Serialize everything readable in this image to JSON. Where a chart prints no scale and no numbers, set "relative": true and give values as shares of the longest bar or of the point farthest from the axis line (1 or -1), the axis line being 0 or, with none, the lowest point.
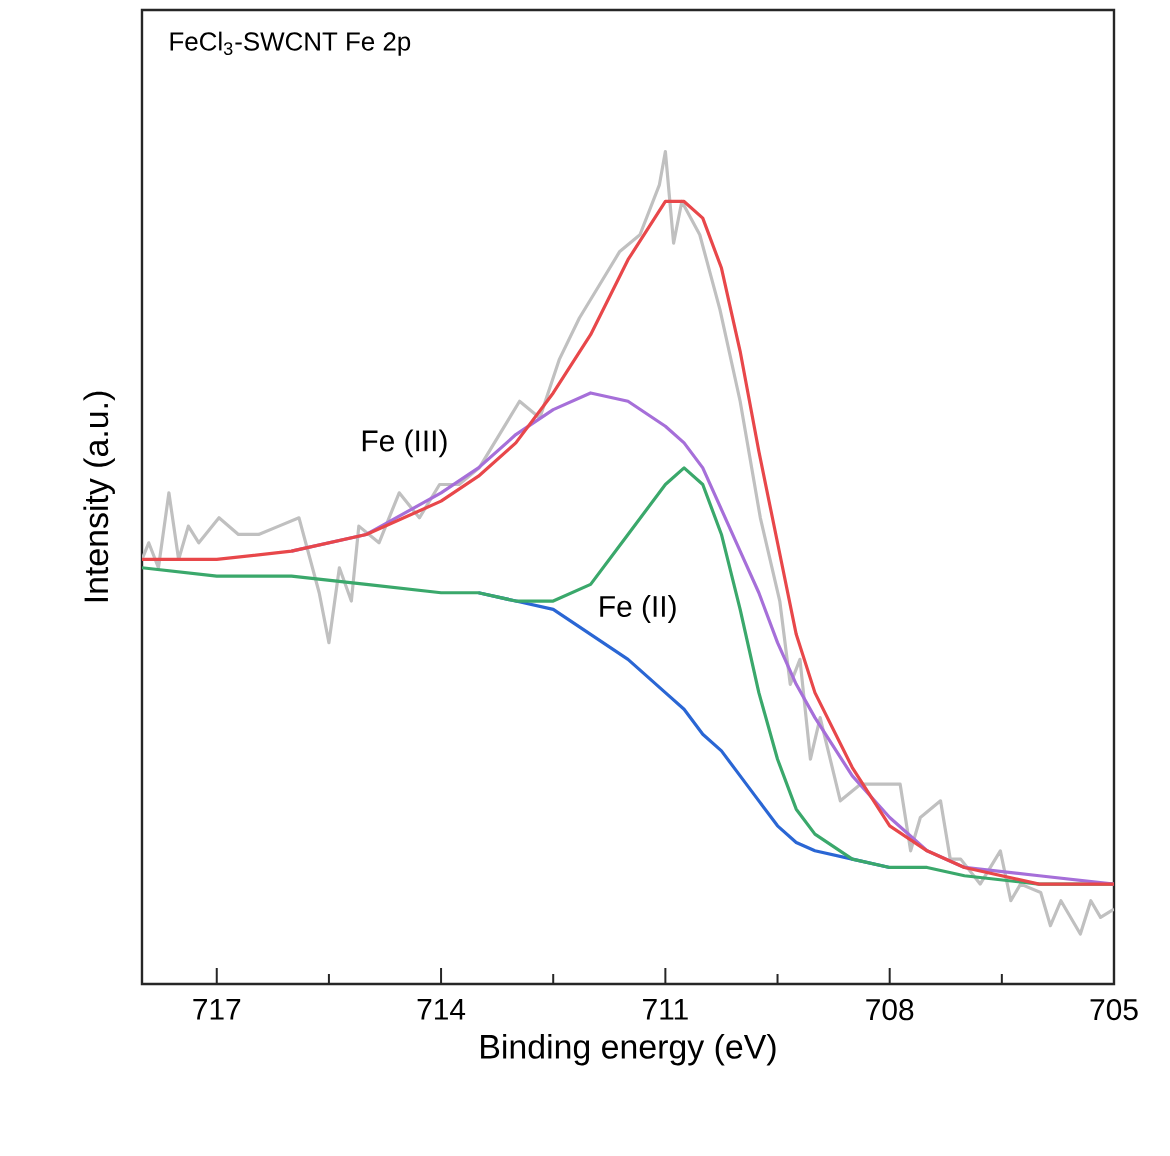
{
  "chart_data": {
    "type": "line",
    "title": "FeCl$_{3}$-SWCNT  Fe 2p",
    "xlabel": "Binding energy (eV)",
    "ylabel": "Intensity (a.u.)",
    "relative": true,
    "xlim": [
      718,
      705
    ],
    "xticks": [
      717,
      714,
      711,
      708,
      705
    ],
    "grid": false,
    "marker": "none",
    "line_style": "solid",
    "annotations": [
      "Fe (III)",
      "Fe (II)"
    ],
    "x": [
      718,
      717,
      716,
      715,
      714,
      713.5,
      713,
      712.5,
      712,
      711.5,
      711,
      710.75,
      710.5,
      710.25,
      710,
      709.75,
      709.5,
      709.25,
      709,
      708.5,
      708,
      707.5,
      707,
      706,
      705
    ],
    "series": [
      {
        "color": "#c0c0c0",
        "x": [
          718.0,
          717.91,
          717.78,
          717.64,
          717.51,
          717.38,
          717.24,
          716.97,
          716.71,
          716.44,
          716.17,
          715.9,
          715.63,
          715.5,
          715.36,
          715.2,
          715.1,
          714.83,
          714.56,
          714.29,
          714.02,
          713.76,
          713.49,
          713.22,
          712.95,
          712.68,
          712.42,
          712.15,
          711.88,
          711.61,
          711.34,
          711.08,
          711.0,
          710.89,
          710.78,
          710.54,
          710.27,
          710.0,
          709.73,
          709.47,
          709.33,
          709.2,
          709.06,
          708.93,
          708.66,
          708.39,
          708.13,
          707.86,
          707.72,
          707.59,
          707.32,
          707.19,
          707.05,
          706.79,
          706.52,
          706.38,
          706.25,
          705.98,
          705.85,
          705.71,
          705.45,
          705.31,
          705.18,
          705.0
        ],
        "values": [
          0.51,
          0.53,
          0.5,
          0.59,
          0.51,
          0.55,
          0.53,
          0.56,
          0.54,
          0.54,
          0.55,
          0.56,
          0.47,
          0.41,
          0.5,
          0.46,
          0.55,
          0.53,
          0.59,
          0.56,
          0.6,
          0.6,
          0.62,
          0.66,
          0.7,
          0.68,
          0.75,
          0.8,
          0.84,
          0.88,
          0.9,
          0.96,
          1.0,
          0.89,
          0.94,
          0.9,
          0.81,
          0.7,
          0.56,
          0.46,
          0.36,
          0.39,
          0.27,
          0.32,
          0.22,
          0.24,
          0.24,
          0.24,
          0.16,
          0.2,
          0.22,
          0.15,
          0.15,
          0.12,
          0.16,
          0.1,
          0.12,
          0.11,
          0.07,
          0.1,
          0.06,
          0.1,
          0.08,
          0.09
        ]
      },
      {
        "color": "#2a66d4",
        "values": [
          null,
          null,
          null,
          null,
          null,
          0.47,
          0.46,
          0.45,
          0.42,
          0.39,
          0.35,
          0.33,
          0.3,
          0.28,
          0.25,
          0.22,
          0.19,
          0.17,
          0.16,
          0.15,
          0.14,
          null,
          null,
          null,
          null
        ]
      },
      {
        "color": "#3aa86b",
        "values": [
          0.5,
          0.49,
          0.49,
          0.48,
          0.47,
          0.47,
          0.46,
          0.46,
          0.48,
          0.54,
          0.6,
          0.62,
          0.6,
          0.54,
          0.45,
          0.35,
          0.27,
          0.21,
          0.18,
          0.15,
          0.14,
          0.14,
          0.13,
          0.12,
          0.12
        ]
      },
      {
        "color": "#a66fd9",
        "values": [
          null,
          null,
          0.52,
          0.54,
          0.59,
          0.62,
          0.66,
          0.69,
          0.71,
          0.7,
          0.67,
          0.65,
          0.62,
          0.57,
          0.52,
          0.47,
          0.41,
          0.36,
          0.32,
          0.25,
          0.2,
          0.16,
          0.14,
          0.13,
          0.12
        ]
      },
      {
        "color": "#e8474a",
        "values": [
          0.51,
          0.51,
          0.52,
          0.54,
          0.58,
          0.61,
          0.65,
          0.71,
          0.78,
          0.87,
          0.94,
          0.94,
          0.92,
          0.86,
          0.76,
          0.64,
          0.53,
          0.42,
          0.35,
          0.26,
          0.19,
          0.16,
          0.14,
          0.12,
          0.12
        ]
      }
    ]
  }
}
